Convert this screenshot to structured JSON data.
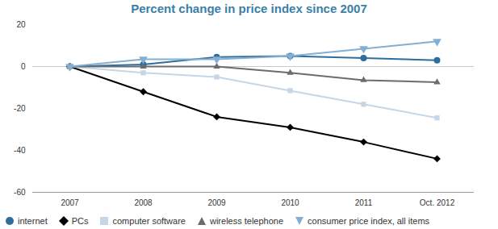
{
  "chart_data": {
    "type": "line",
    "title": "Percent change in price index since 2007",
    "categories": [
      "2007",
      "2008",
      "2009",
      "2010",
      "2011",
      "Oct. 2012"
    ],
    "series": [
      {
        "name": "internet",
        "color": "#2f6e9c",
        "marker": "circle",
        "values": [
          0,
          1,
          4.5,
          5,
          4,
          3
        ]
      },
      {
        "name": "PCs",
        "color": "#000000",
        "marker": "diamond",
        "values": [
          0,
          -12,
          -24,
          -29,
          -36,
          -44
        ]
      },
      {
        "name": "computer software",
        "color": "#c6d6e6",
        "marker": "square",
        "values": [
          0,
          -3,
          -5,
          -11.5,
          -18,
          -24.5
        ]
      },
      {
        "name": "wireless telephone",
        "color": "#6b6c70",
        "marker": "triangle",
        "values": [
          0,
          0,
          0,
          -3,
          -6.5,
          -7.5
        ]
      },
      {
        "name": "consumer price index, all items",
        "color": "#82afd3",
        "marker": "triangle-down",
        "values": [
          0,
          3.5,
          3.5,
          5,
          8.5,
          12
        ]
      }
    ],
    "ylim": [
      -60,
      20
    ],
    "yticks": [
      -60,
      -40,
      -20,
      0,
      20
    ],
    "grid": false,
    "legend": "bottom"
  }
}
